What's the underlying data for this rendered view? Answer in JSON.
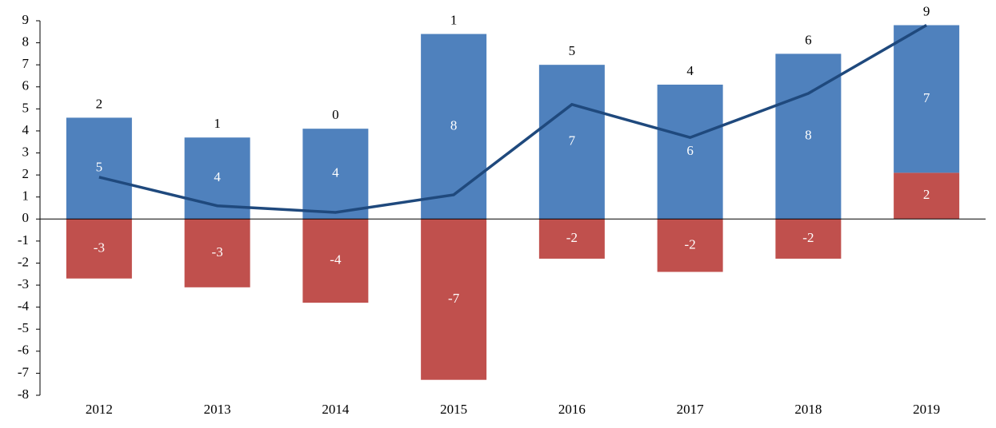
{
  "chart_data": {
    "type": "bar",
    "stacked": true,
    "categories": [
      "2012",
      "2013",
      "2014",
      "2015",
      "2016",
      "2017",
      "2018",
      "2019"
    ],
    "series": [
      {
        "type": "bar",
        "color": "#c0504d",
        "values": [
          -2.7,
          -3.1,
          -3.8,
          -7.3,
          -1.8,
          -2.4,
          -1.8,
          2.1
        ],
        "value_labels": [
          "-3",
          "-3",
          "-4",
          "-7",
          "-2",
          "-2",
          "-2",
          "2"
        ]
      },
      {
        "type": "bar",
        "color": "#4f81bd",
        "values": [
          4.6,
          3.7,
          4.1,
          8.4,
          7.0,
          6.1,
          7.5,
          6.7
        ],
        "value_labels": [
          "5",
          "4",
          "4",
          "8",
          "7",
          "6",
          "8",
          "7"
        ]
      },
      {
        "type": "line",
        "color": "#1f497d",
        "values": [
          1.9,
          0.6,
          0.3,
          1.1,
          5.2,
          3.7,
          5.7,
          8.8
        ],
        "value_labels": [
          "2",
          "1",
          "0",
          "1",
          "5",
          "4",
          "6",
          "9"
        ]
      }
    ],
    "ylim": [
      -8,
      9
    ],
    "yticks": [
      -8,
      -7,
      -6,
      -5,
      -4,
      -3,
      -2,
      -1,
      0,
      1,
      2,
      3,
      4,
      5,
      6,
      7,
      8,
      9
    ],
    "grid": false
  }
}
